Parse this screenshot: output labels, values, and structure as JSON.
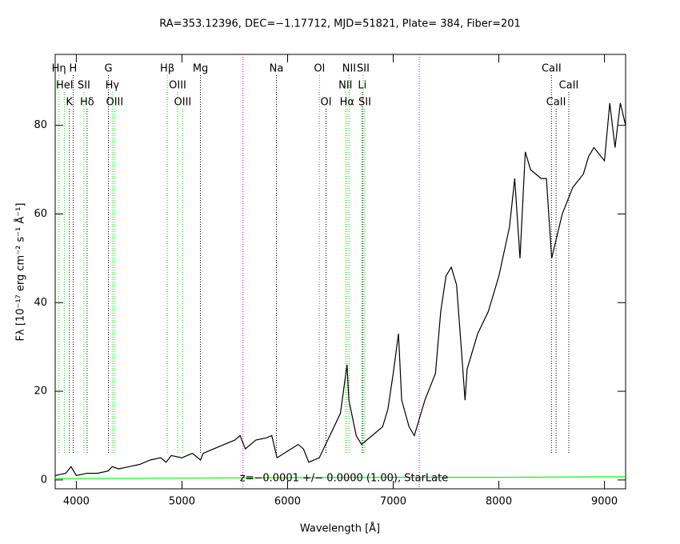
{
  "chart_data": {
    "type": "line",
    "title": "RA=353.12396, DEC=−1.17712, MJD=51821, Plate= 384, Fiber=201",
    "xlabel": "Wavelength [Å]",
    "ylabel": "Fλ [10⁻¹⁷ erg cm⁻² s⁻¹ Å⁻¹]",
    "annotation": "z=−0.0001 +/− 0.0000 (1.00), StarLate",
    "xlim": [
      3800,
      9200
    ],
    "ylim": [
      -2,
      96
    ],
    "xticks": [
      4000,
      5000,
      6000,
      7000,
      8000,
      9000
    ],
    "yticks": [
      0,
      20,
      40,
      60,
      80
    ],
    "series": [
      {
        "color": "#000000",
        "x": [
          3800,
          3900,
          3950,
          4000,
          4100,
          4200,
          4300,
          4340,
          4400,
          4500,
          4600,
          4700,
          4800,
          4850,
          4900,
          5000,
          5100,
          5175,
          5200,
          5300,
          5400,
          5500,
          5550,
          5600,
          5700,
          5800,
          5850,
          5900,
          6000,
          6100,
          6150,
          6200,
          6300,
          6400,
          6500,
          6563,
          6580,
          6650,
          6700,
          6800,
          6900,
          6950,
          7000,
          7050,
          7080,
          7150,
          7200,
          7300,
          7400,
          7450,
          7500,
          7550,
          7600,
          7650,
          7680,
          7700,
          7800,
          7900,
          8000,
          8100,
          8150,
          8200,
          8250,
          8300,
          8400,
          8450,
          8500,
          8550,
          8600,
          8700,
          8800,
          8850,
          8900,
          9000,
          9050,
          9100,
          9150,
          9200
        ],
        "values": [
          1,
          1.5,
          3,
          1,
          1.5,
          1.5,
          2,
          3,
          2.5,
          3,
          3.5,
          4.5,
          5,
          4,
          5.5,
          5,
          6,
          4.5,
          6,
          7,
          8,
          9,
          10,
          7,
          9,
          9.5,
          10,
          5,
          6.5,
          8,
          7,
          4,
          5,
          10,
          15,
          26,
          18,
          10,
          8,
          10,
          12,
          16,
          24,
          33,
          18,
          12,
          10,
          18,
          24,
          38,
          46,
          48,
          44,
          28,
          18,
          25,
          33,
          38,
          46,
          57,
          68,
          50,
          74,
          70,
          68,
          68,
          50,
          55,
          60,
          66,
          69,
          73,
          75,
          72,
          85,
          75,
          85,
          80
        ]
      },
      {
        "color": "#00ff00",
        "x": [
          3800,
          5000,
          6000,
          7000,
          8000,
          9000,
          9200
        ],
        "values": [
          0.3,
          0.4,
          0.5,
          0.6,
          0.6,
          0.7,
          0.7
        ]
      }
    ],
    "line_colors": {
      "emission": "#00dd00",
      "absorption": "#000000",
      "sky": "#dd00dd"
    },
    "sky_lines": [
      5577,
      7246
    ],
    "line_labels": [
      [
        {
          "label": "Hη",
          "wavelength": 3835,
          "kind": "emission"
        },
        {
          "label": "H",
          "wavelength": 3970,
          "kind": "absorption"
        },
        {
          "label": "G",
          "wavelength": 4304,
          "kind": "absorption"
        },
        {
          "label": "Hβ",
          "wavelength": 4861,
          "kind": "emission"
        },
        {
          "label": "Mg",
          "wavelength": 5175,
          "kind": "absorption"
        },
        {
          "label": "Na",
          "wavelength": 5894,
          "kind": "absorption"
        },
        {
          "label": "OI",
          "wavelength": 6302,
          "kind": "emission"
        },
        {
          "label": "NII",
          "wavelength": 6583,
          "kind": "emission"
        },
        {
          "label": "SII",
          "wavelength": 6716,
          "kind": "emission"
        },
        {
          "label": "CaII",
          "wavelength": 8498,
          "kind": "absorption"
        }
      ],
      [
        {
          "label": "HeI",
          "wavelength": 3889,
          "kind": "emission"
        },
        {
          "label": "SII",
          "wavelength": 4072,
          "kind": "emission"
        },
        {
          "label": "Hγ",
          "wavelength": 4340,
          "kind": "emission"
        },
        {
          "label": "OIII",
          "wavelength": 4959,
          "kind": "emission"
        },
        {
          "label": "NII",
          "wavelength": 6548,
          "kind": "emission"
        },
        {
          "label": "Li",
          "wavelength": 6707,
          "kind": "absorption"
        },
        {
          "label": "CaII",
          "wavelength": 8662,
          "kind": "absorption"
        }
      ],
      [
        {
          "label": "K",
          "wavelength": 3934,
          "kind": "absorption"
        },
        {
          "label": "Hδ",
          "wavelength": 4102,
          "kind": "absorption"
        },
        {
          "label": "OIII",
          "wavelength": 4363,
          "kind": "emission"
        },
        {
          "label": "OIII",
          "wavelength": 5007,
          "kind": "emission"
        },
        {
          "label": "OI",
          "wavelength": 6364,
          "kind": "absorption"
        },
        {
          "label": "Hα",
          "wavelength": 6563,
          "kind": "emission"
        },
        {
          "label": "SII",
          "wavelength": 6731,
          "kind": "emission"
        },
        {
          "label": "CaII",
          "wavelength": 8542,
          "kind": "absorption"
        }
      ]
    ]
  }
}
